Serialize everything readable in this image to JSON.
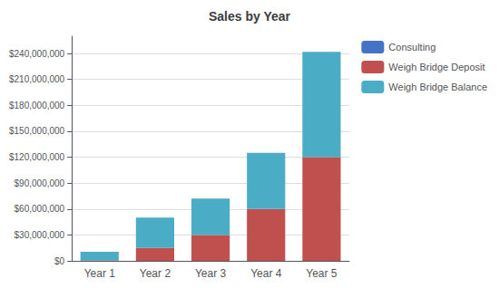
{
  "chart_data": {
    "type": "bar",
    "title": "Sales by Year",
    "categories": [
      "Year 1",
      "Year 2",
      "Year 3",
      "Year 4",
      "Year 5"
    ],
    "series": [
      {
        "name": "Consulting",
        "color": "#4472C4",
        "values": [
          0,
          0,
          0,
          0,
          0
        ]
      },
      {
        "name": "Weigh Bridge Deposit",
        "color": "#C0504D",
        "values": [
          500000,
          15000000,
          30000000,
          60000000,
          120000000
        ]
      },
      {
        "name": "Weigh Bridge Balance",
        "color": "#4BACC6",
        "values": [
          10000000,
          35000000,
          42000000,
          65000000,
          122000000
        ]
      }
    ],
    "stacked": true,
    "ylim": [
      0,
      260000000
    ],
    "yticks": [
      {
        "value": 0,
        "label": "$0"
      },
      {
        "value": 30000000,
        "label": "$30,000,000"
      },
      {
        "value": 60000000,
        "label": "$60,000,000"
      },
      {
        "value": 90000000,
        "label": "$90,000,000"
      },
      {
        "value": 120000000,
        "label": "$120,000,000"
      },
      {
        "value": 150000000,
        "label": "$150,000,000"
      },
      {
        "value": 180000000,
        "label": "$180,000,000"
      },
      {
        "value": 210000000,
        "label": "$210,000,000"
      },
      {
        "value": 240000000,
        "label": "$240,000,000"
      }
    ],
    "grid": true,
    "legend": "right"
  }
}
